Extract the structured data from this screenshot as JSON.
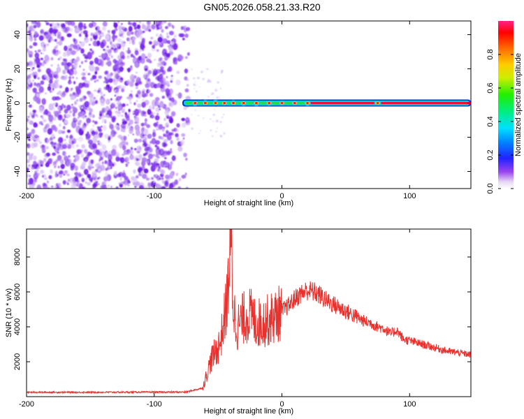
{
  "title": "GN05.2026.058.21.33.R20",
  "chart_data": [
    {
      "type": "heatmap",
      "xlabel": "Height of straight line (km)",
      "ylabel": "Frequency (Hz)",
      "xlim": [
        -200,
        148
      ],
      "ylim": [
        -50,
        48
      ],
      "xticks": [
        -200,
        -100,
        0,
        100
      ],
      "yticks": [
        -40,
        -20,
        0,
        20,
        40
      ],
      "colorbar": {
        "label": "Normalized spectral amplitude",
        "range": [
          0,
          1
        ],
        "ticks": [
          "0.0",
          "0.2",
          "0.4",
          "0.6",
          "0.8"
        ]
      },
      "noise_region_x": [
        -200,
        -73
      ],
      "band": {
        "frequency": 0,
        "x_start": -78,
        "x_end": 148,
        "hot_spots_x": [
          -68,
          -60,
          -52,
          -45,
          -38,
          -30,
          -20,
          -10,
          0,
          10,
          20,
          75
        ]
      }
    },
    {
      "type": "line",
      "xlabel": "Height of straight line (km)",
      "ylabel": "SNR (10 * v/v)",
      "xlim": [
        -200,
        148
      ],
      "ylim": [
        0,
        9600
      ],
      "xticks": [
        -200,
        -100,
        0,
        100
      ],
      "yticks": [
        2000,
        4000,
        6000,
        8000
      ],
      "color": "#e8302c",
      "series": [
        {
          "x": [
            -200,
            -150,
            -100,
            -75,
            -62,
            -58,
            -55,
            -50,
            -48,
            -45,
            -43,
            -41,
            -40,
            -38,
            -35,
            -30,
            -25,
            -20,
            -15,
            -10,
            -5,
            0,
            5,
            10,
            15,
            20,
            25,
            30,
            35,
            40,
            45,
            50,
            55,
            60,
            65,
            70,
            75,
            80,
            85,
            90,
            95,
            100,
            110,
            120,
            130,
            140,
            148
          ],
          "y": [
            250,
            250,
            260,
            260,
            500,
            1500,
            2200,
            2800,
            3200,
            4500,
            5500,
            7500,
            9600,
            5000,
            4000,
            4500,
            4700,
            4200,
            4300,
            4400,
            4600,
            4900,
            5200,
            5600,
            5900,
            6100,
            6000,
            5800,
            5500,
            5300,
            5100,
            4900,
            4700,
            4500,
            4300,
            4200,
            4000,
            3900,
            3600,
            3800,
            3300,
            3200,
            3000,
            2800,
            2600,
            2500,
            2400
          ]
        }
      ]
    }
  ]
}
